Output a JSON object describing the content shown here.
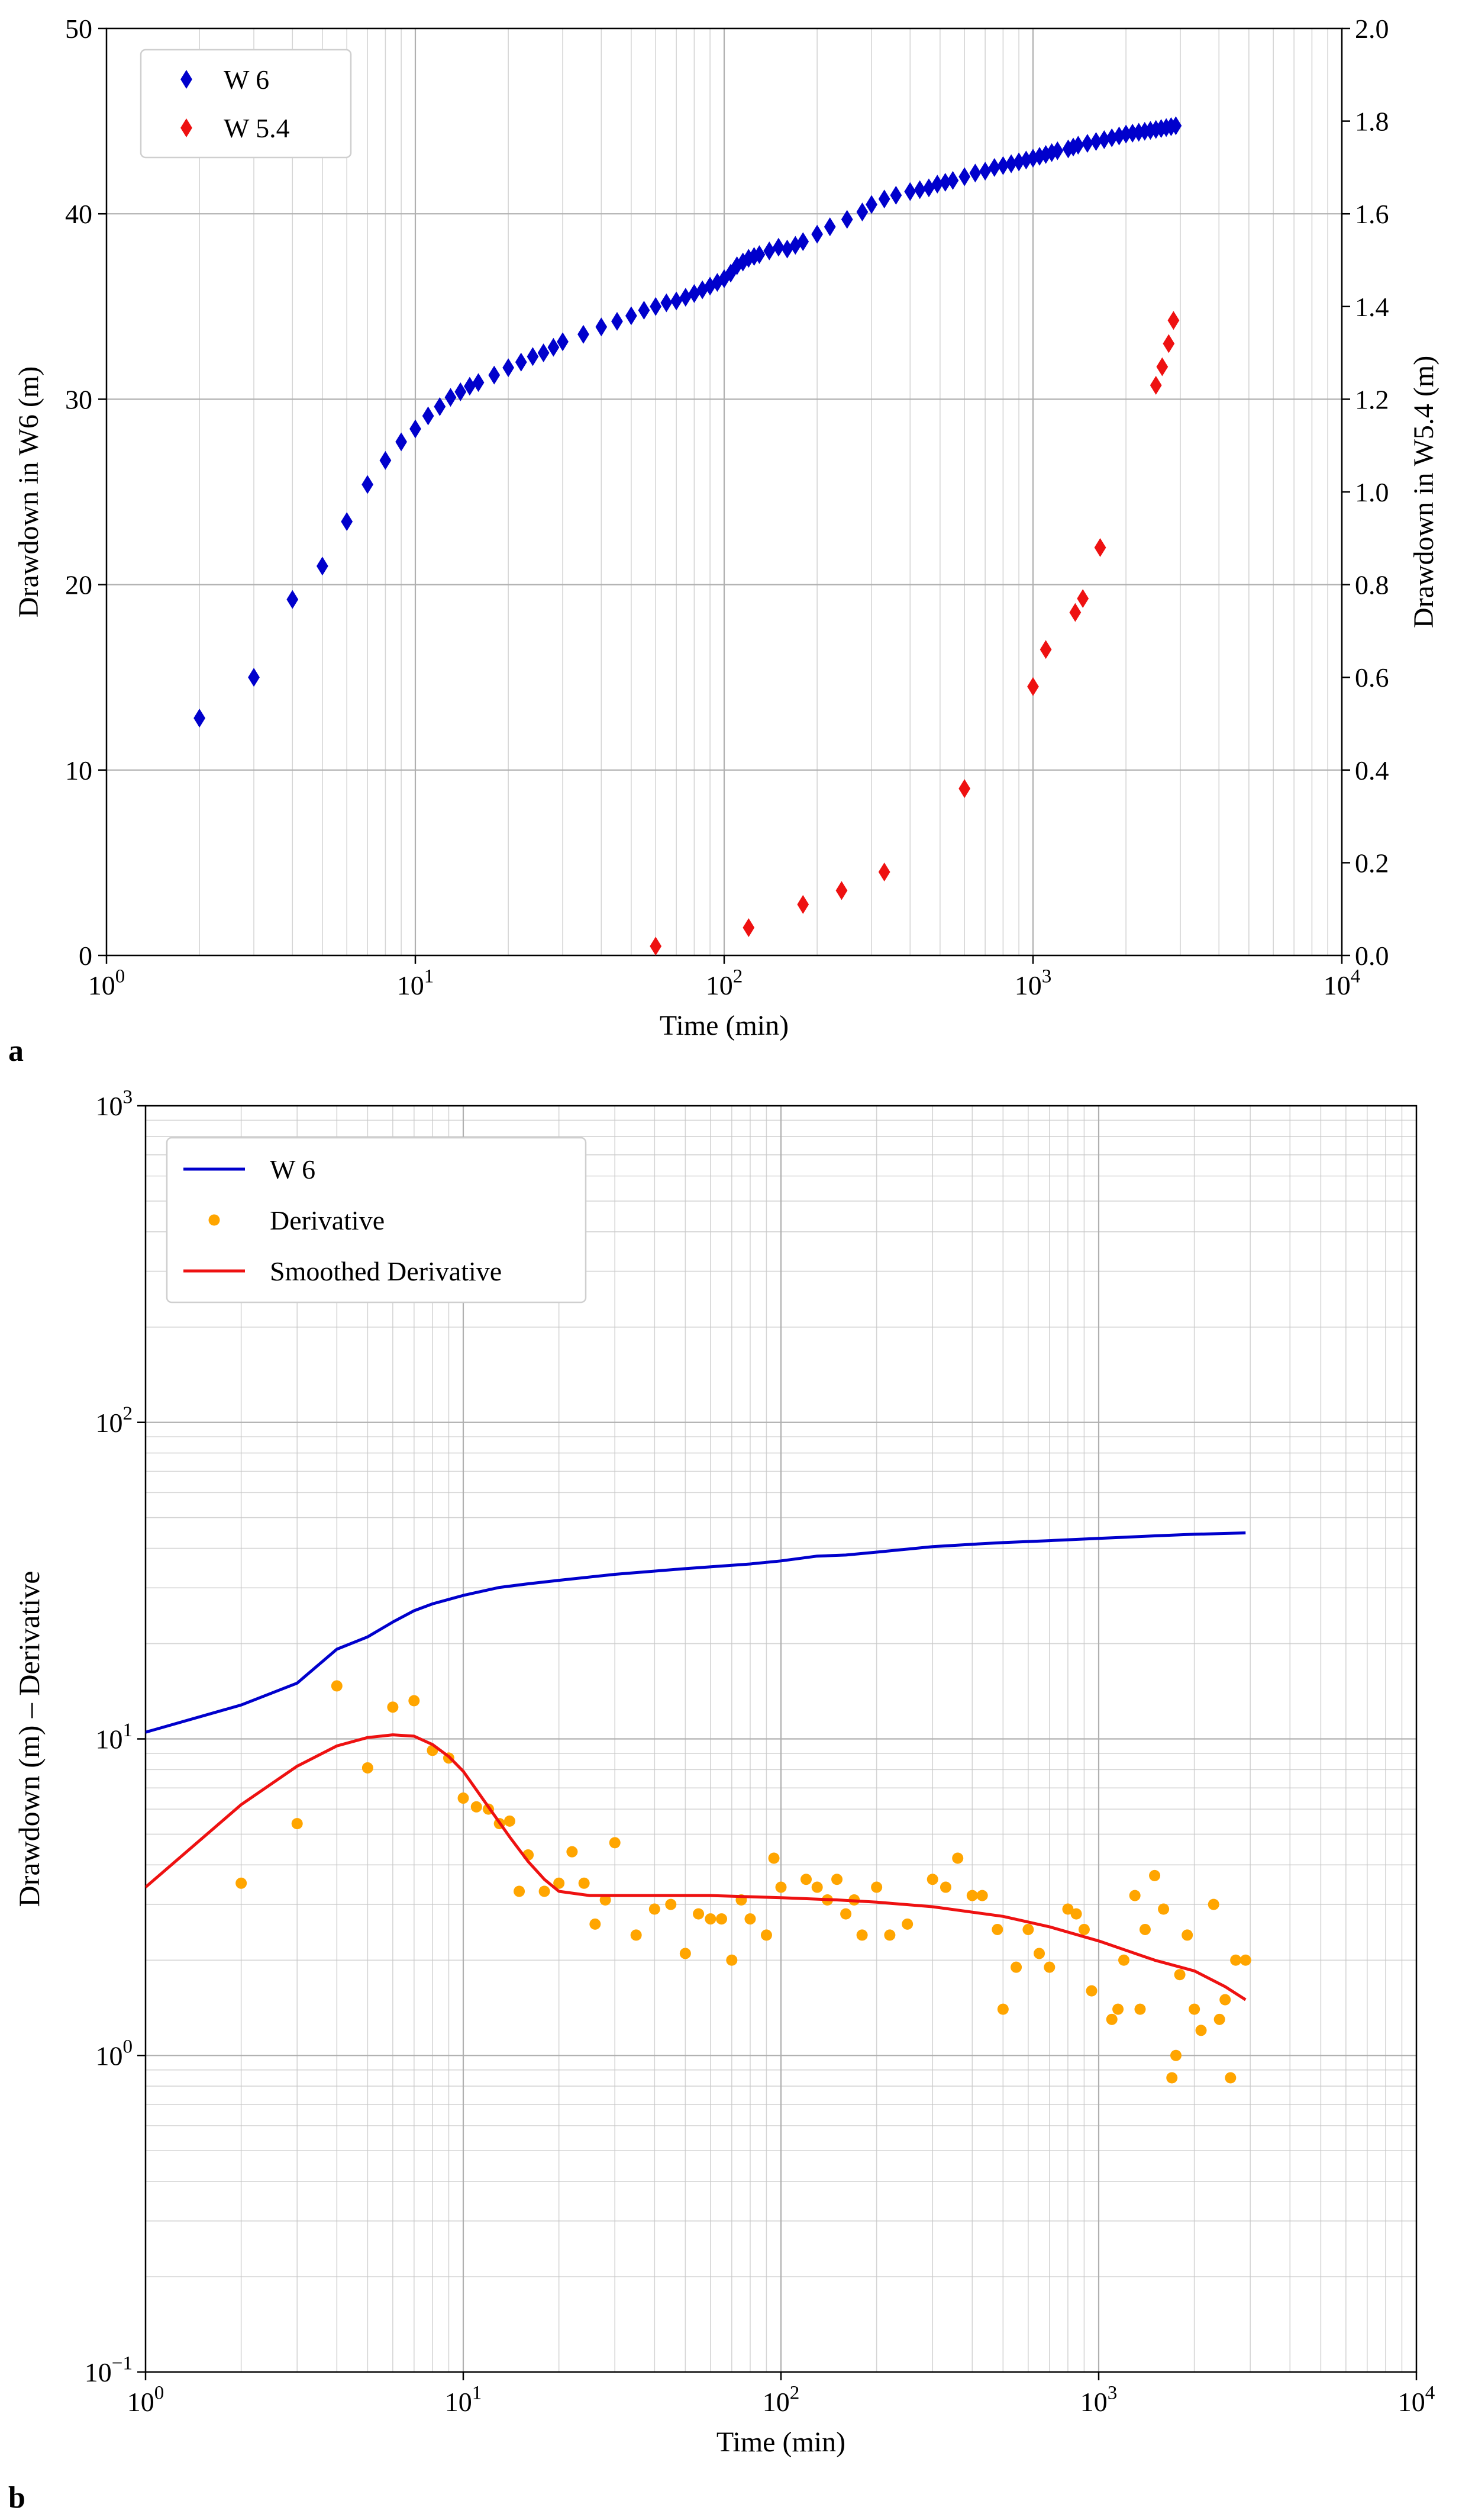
{
  "panel_labels": {
    "a": "a",
    "b": "b"
  },
  "colors": {
    "w6": "#0000cc",
    "w54": "#ee1111",
    "derivative": "#ffa500",
    "smoothed": "#ee1111",
    "grid": "#c8c8c8"
  },
  "chart_data": [
    {
      "type": "scatter",
      "panel": "a",
      "title": "",
      "xlabel": "Time (min)",
      "ylabel": "Drawdown in W6 (m)",
      "y2label": "Drawdown in W5.4 (m)",
      "xscale": "log",
      "xlim": [
        1,
        10000
      ],
      "ylim": [
        0,
        50
      ],
      "y2lim": [
        0,
        2
      ],
      "grid": true,
      "legend_position": "top-left",
      "x_ticks": [
        {
          "value": 1,
          "base": "10",
          "exp": "0"
        },
        {
          "value": 10,
          "base": "10",
          "exp": "1"
        },
        {
          "value": 100,
          "base": "10",
          "exp": "2"
        },
        {
          "value": 1000,
          "base": "10",
          "exp": "3"
        },
        {
          "value": 10000,
          "base": "10",
          "exp": "4"
        }
      ],
      "y_ticks": [
        {
          "value": 0,
          "label": "0"
        },
        {
          "value": 10,
          "label": "10"
        },
        {
          "value": 20,
          "label": "20"
        },
        {
          "value": 30,
          "label": "30"
        },
        {
          "value": 40,
          "label": "40"
        },
        {
          "value": 50,
          "label": "50"
        }
      ],
      "y2_ticks": [
        {
          "value": 0,
          "label": "0.0"
        },
        {
          "value": 0.2,
          "label": "0.2"
        },
        {
          "value": 0.4,
          "label": "0.4"
        },
        {
          "value": 0.6,
          "label": "0.6"
        },
        {
          "value": 0.8,
          "label": "0.8"
        },
        {
          "value": 1.0,
          "label": "1.0"
        },
        {
          "value": 1.2,
          "label": "1.2"
        },
        {
          "value": 1.4,
          "label": "1.4"
        },
        {
          "value": 1.6,
          "label": "1.6"
        },
        {
          "value": 1.8,
          "label": "1.8"
        },
        {
          "value": 2.0,
          "label": "2.0"
        }
      ],
      "series": [
        {
          "name": "W 6",
          "axis": "left",
          "marker": "diamond",
          "color": "#0000cc",
          "x": [
            2,
            3,
            4,
            5,
            6,
            7,
            8,
            9,
            10,
            11,
            12,
            13,
            14,
            15,
            16,
            18,
            20,
            22,
            24,
            26,
            28,
            30,
            35,
            40,
            45,
            50,
            55,
            60,
            65,
            70,
            75,
            80,
            85,
            90,
            95,
            100,
            105,
            110,
            115,
            120,
            125,
            130,
            140,
            150,
            160,
            170,
            180,
            200,
            220,
            250,
            280,
            300,
            330,
            360,
            400,
            430,
            460,
            490,
            520,
            550,
            600,
            650,
            700,
            750,
            800,
            850,
            900,
            950,
            1000,
            1050,
            1100,
            1150,
            1200,
            1300,
            1350,
            1400,
            1500,
            1600,
            1700,
            1800,
            1900,
            2000,
            2100,
            2200,
            2300,
            2400,
            2500,
            2600,
            2700,
            2800,
            2900
          ],
          "y": [
            12.8,
            15,
            19.2,
            21,
            23.4,
            25.4,
            26.7,
            27.7,
            28.4,
            29.1,
            29.6,
            30.1,
            30.4,
            30.7,
            30.9,
            31.3,
            31.7,
            32.0,
            32.3,
            32.5,
            32.8,
            33.1,
            33.5,
            33.9,
            34.2,
            34.5,
            34.8,
            35.0,
            35.2,
            35.3,
            35.5,
            35.7,
            35.9,
            36.1,
            36.3,
            36.5,
            36.8,
            37.2,
            37.4,
            37.6,
            37.7,
            37.8,
            38.0,
            38.2,
            38.1,
            38.3,
            38.5,
            38.9,
            39.3,
            39.7,
            40.1,
            40.5,
            40.8,
            41.0,
            41.2,
            41.3,
            41.4,
            41.6,
            41.7,
            41.8,
            42.0,
            42.2,
            42.3,
            42.5,
            42.6,
            42.7,
            42.8,
            42.9,
            43.0,
            43.1,
            43.2,
            43.3,
            43.4,
            43.5,
            43.6,
            43.7,
            43.8,
            43.9,
            44.0,
            44.1,
            44.2,
            44.3,
            44.35,
            44.4,
            44.45,
            44.5,
            44.55,
            44.6,
            44.65,
            44.7,
            44.75
          ]
        },
        {
          "name": "W 5.4",
          "axis": "right",
          "marker": "diamond",
          "color": "#ee1111",
          "x": [
            60,
            120,
            180,
            240,
            330,
            600,
            1000,
            1100,
            1370,
            1450,
            1650,
            2500,
            2620,
            2750,
            2850
          ],
          "y": [
            0.02,
            0.06,
            0.11,
            0.14,
            0.18,
            0.36,
            0.58,
            0.66,
            0.74,
            0.77,
            0.88,
            1.23,
            1.27,
            1.32,
            1.37
          ]
        }
      ]
    },
    {
      "type": "line",
      "panel": "b",
      "title": "",
      "xlabel": "Time (min)",
      "ylabel": "Drawdown (m) – Derivative",
      "xscale": "log",
      "yscale": "log",
      "xlim": [
        1,
        10000
      ],
      "ylim": [
        0.1,
        1000
      ],
      "grid": true,
      "legend_position": "top-left",
      "x_ticks": [
        {
          "value": 1,
          "base": "10",
          "exp": "0"
        },
        {
          "value": 10,
          "base": "10",
          "exp": "1"
        },
        {
          "value": 100,
          "base": "10",
          "exp": "2"
        },
        {
          "value": 1000,
          "base": "10",
          "exp": "3"
        },
        {
          "value": 10000,
          "base": "10",
          "exp": "4"
        }
      ],
      "y_ticks": [
        {
          "value": 0.1,
          "base": "10",
          "exp": "−1"
        },
        {
          "value": 1,
          "base": "10",
          "exp": "0"
        },
        {
          "value": 10,
          "base": "10",
          "exp": "1"
        },
        {
          "value": 100,
          "base": "10",
          "exp": "2"
        },
        {
          "value": 1000,
          "base": "10",
          "exp": "3"
        }
      ],
      "series": [
        {
          "name": "W 6",
          "style": "line",
          "color": "#0000cc",
          "x": [
            1,
            2,
            3,
            4,
            5,
            6,
            7,
            8,
            10,
            13,
            16,
            20,
            30,
            50,
            80,
            100,
            130,
            160,
            200,
            300,
            400,
            500,
            700,
            1000,
            1500,
            2000,
            2900
          ],
          "y": [
            10.5,
            12.8,
            15,
            19.2,
            21,
            23.4,
            25.4,
            26.7,
            28.4,
            30.1,
            30.9,
            31.7,
            33.1,
            34.5,
            35.7,
            36.5,
            37.8,
            38.1,
            38.9,
            40.5,
            41.2,
            41.7,
            42.3,
            43.0,
            43.8,
            44.3,
            44.75
          ]
        },
        {
          "name": "Derivative",
          "style": "points",
          "color": "#ffa500",
          "x": [
            2,
            3,
            4,
            5,
            6,
            7,
            8,
            9,
            10,
            11,
            12,
            13,
            14,
            15,
            16,
            18,
            20,
            22,
            24,
            26,
            28,
            30,
            35,
            40,
            45,
            50,
            55,
            60,
            65,
            70,
            75,
            80,
            90,
            95,
            100,
            120,
            130,
            140,
            150,
            160,
            170,
            180,
            200,
            220,
            250,
            300,
            330,
            360,
            400,
            430,
            480,
            500,
            550,
            600,
            650,
            700,
            800,
            850,
            900,
            950,
            1100,
            1150,
            1200,
            1300,
            1350,
            1400,
            1500,
            1600,
            1700,
            1750,
            1800,
            1900,
            2000,
            2100,
            2300,
            2400,
            2500,
            2600,
            2700,
            2900
          ],
          "y": [
            3.5,
            5.4,
            14.7,
            8.1,
            12.6,
            13.2,
            9.2,
            8.7,
            6.5,
            6.1,
            6.0,
            5.4,
            5.5,
            3.3,
            4.3,
            3.3,
            3.5,
            4.4,
            3.5,
            2.6,
            3.1,
            4.7,
            2.4,
            2.9,
            3.0,
            2.1,
            2.8,
            2.7,
            2.7,
            2.0,
            3.1,
            2.7,
            2.4,
            4.2,
            3.4,
            3.6,
            3.4,
            3.1,
            3.6,
            2.8,
            3.1,
            2.4,
            3.4,
            2.4,
            2.6,
            3.6,
            3.4,
            4.2,
            3.2,
            3.2,
            2.5,
            1.4,
            1.9,
            2.5,
            2.1,
            1.9,
            2.9,
            2.8,
            2.5,
            1.6,
            1.3,
            1.4,
            2.0,
            3.2,
            1.4,
            2.5,
            3.7,
            2.9,
            0.85,
            1.0,
            1.8,
            2.4,
            1.4,
            1.2,
            3.0,
            1.3,
            1.5,
            0.85,
            2.0,
            2.0
          ]
        },
        {
          "name": "Smoothed Derivative",
          "style": "line",
          "color": "#ee1111",
          "x": [
            1,
            2,
            3,
            4,
            5,
            6,
            7,
            8,
            9,
            10,
            12,
            14,
            16,
            18,
            20,
            25,
            30,
            40,
            60,
            100,
            150,
            200,
            300,
            500,
            700,
            1000,
            1500,
            2000,
            2500,
            2900
          ],
          "y": [
            3.4,
            6.2,
            8.2,
            9.5,
            10.1,
            10.3,
            10.2,
            9.6,
            8.8,
            7.9,
            6.1,
            4.9,
            4.1,
            3.6,
            3.3,
            3.2,
            3.2,
            3.2,
            3.2,
            3.15,
            3.1,
            3.05,
            2.95,
            2.75,
            2.55,
            2.3,
            2.0,
            1.85,
            1.65,
            1.5
          ]
        }
      ]
    }
  ]
}
